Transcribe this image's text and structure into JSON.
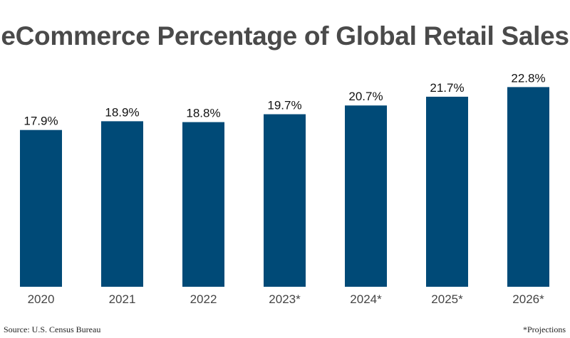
{
  "chart_data": {
    "type": "bar",
    "title": "eCommerce Percentage of Global Retail Sales",
    "categories": [
      "2020",
      "2021",
      "2022",
      "2023*",
      "2024*",
      "2025*",
      "2026*"
    ],
    "values": [
      17.9,
      18.9,
      18.8,
      19.7,
      20.7,
      21.7,
      22.8
    ],
    "data_labels": [
      "17.9%",
      "18.9%",
      "18.8%",
      "19.7%",
      "20.7%",
      "21.7%",
      "22.8%"
    ],
    "xlabel": "",
    "ylabel": "",
    "ylim": [
      0,
      26
    ],
    "grid": false,
    "bar_color": "#004a77"
  },
  "footer": {
    "source": "Source: U.S. Census Bureau",
    "note": "*Projections"
  }
}
